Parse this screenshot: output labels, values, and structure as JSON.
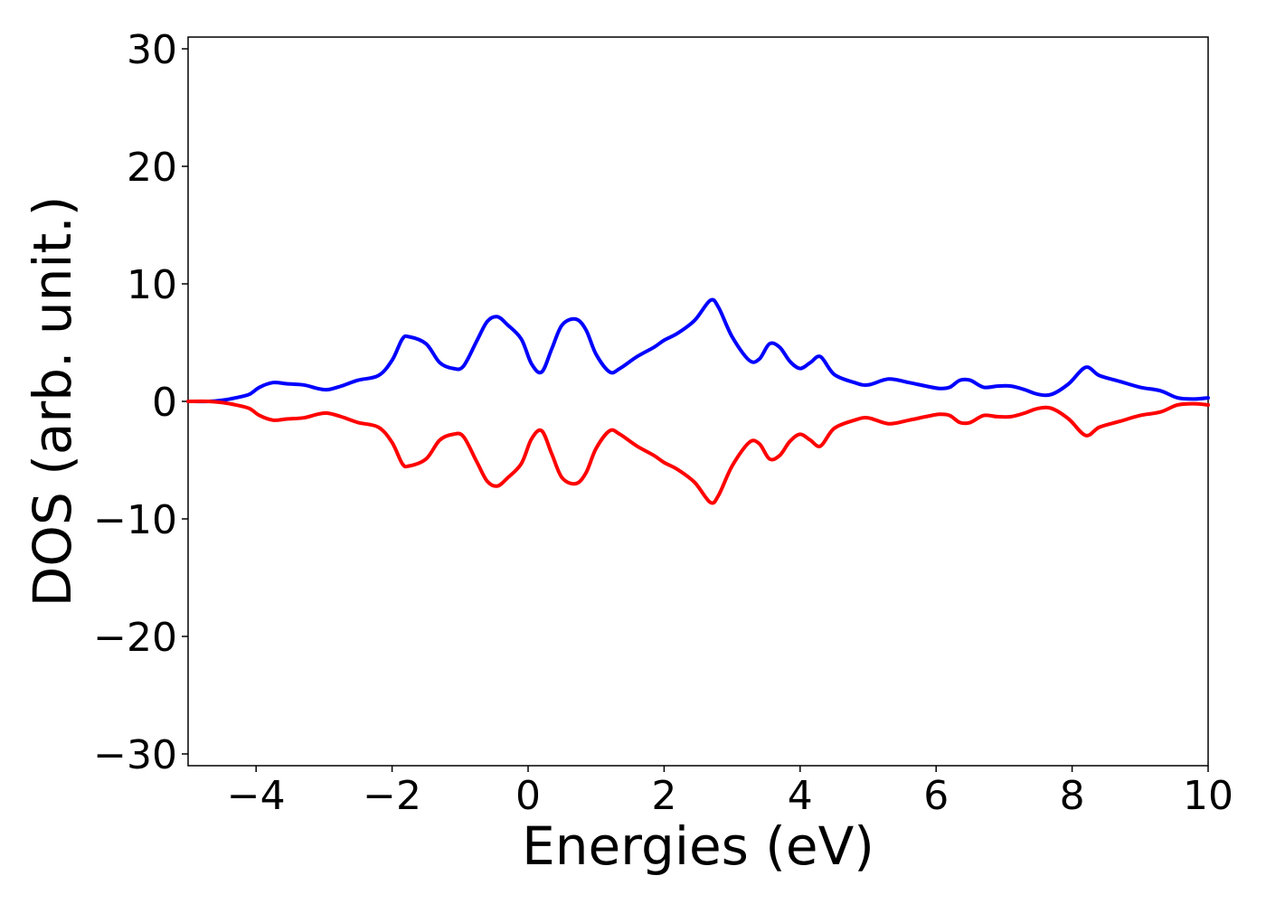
{
  "chart_data": {
    "type": "line",
    "title": "",
    "xlabel": "Energies (eV)",
    "ylabel": "DOS (arb. unit.)",
    "xlim": [
      -5,
      10
    ],
    "ylim": [
      -31,
      31
    ],
    "grid": false,
    "legend": "none",
    "xticks": [
      -4,
      -2,
      0,
      2,
      4,
      6,
      8,
      10
    ],
    "yticks": [
      -30,
      -20,
      -10,
      0,
      10,
      20,
      30
    ],
    "xtick_labels": [
      "−4",
      "−2",
      "0",
      "2",
      "4",
      "6",
      "8",
      "10"
    ],
    "ytick_labels": [
      "−30",
      "−20",
      "−10",
      "0",
      "10",
      "20",
      "30"
    ],
    "series": [
      {
        "color": "#0000ff",
        "x": [
          -5.0,
          -4.7,
          -4.5,
          -4.3,
          -4.1,
          -3.95,
          -3.75,
          -3.55,
          -3.3,
          -3.1,
          -2.95,
          -2.75,
          -2.5,
          -2.2,
          -2.0,
          -1.85,
          -1.75,
          -1.5,
          -1.3,
          -1.1,
          -0.95,
          -0.75,
          -0.6,
          -0.45,
          -0.3,
          -0.1,
          0.05,
          0.2,
          0.35,
          0.5,
          0.7,
          0.85,
          1.0,
          1.2,
          1.35,
          1.6,
          1.85,
          2.0,
          2.2,
          2.45,
          2.68,
          2.8,
          3.0,
          3.25,
          3.4,
          3.55,
          3.7,
          3.85,
          4.0,
          4.15,
          4.3,
          4.5,
          4.8,
          5.0,
          5.3,
          5.6,
          5.85,
          6.05,
          6.2,
          6.35,
          6.5,
          6.7,
          6.9,
          7.1,
          7.3,
          7.5,
          7.7,
          7.95,
          8.2,
          8.4,
          8.7,
          9.0,
          9.3,
          9.55,
          9.8,
          10.0
        ],
        "values": [
          0.0,
          0.0,
          0.1,
          0.3,
          0.6,
          1.2,
          1.6,
          1.5,
          1.4,
          1.1,
          1.0,
          1.3,
          1.8,
          2.2,
          3.5,
          5.3,
          5.5,
          4.9,
          3.3,
          2.8,
          3.0,
          5.2,
          6.8,
          7.2,
          6.5,
          5.3,
          3.2,
          2.5,
          4.5,
          6.5,
          7.0,
          6.1,
          4.0,
          2.5,
          2.8,
          3.8,
          4.6,
          5.2,
          5.8,
          6.9,
          8.6,
          8.0,
          5.5,
          3.5,
          3.6,
          4.9,
          4.6,
          3.4,
          2.8,
          3.3,
          3.8,
          2.3,
          1.6,
          1.4,
          1.9,
          1.6,
          1.3,
          1.1,
          1.2,
          1.8,
          1.8,
          1.2,
          1.3,
          1.3,
          1.0,
          0.6,
          0.6,
          1.5,
          2.9,
          2.2,
          1.7,
          1.2,
          0.9,
          0.3,
          0.2,
          0.3
        ]
      },
      {
        "color": "#ff0000",
        "x": [
          -5.0,
          -4.7,
          -4.5,
          -4.3,
          -4.1,
          -3.95,
          -3.75,
          -3.55,
          -3.3,
          -3.1,
          -2.95,
          -2.75,
          -2.5,
          -2.2,
          -2.0,
          -1.85,
          -1.75,
          -1.5,
          -1.3,
          -1.1,
          -0.95,
          -0.75,
          -0.6,
          -0.45,
          -0.3,
          -0.1,
          0.05,
          0.2,
          0.35,
          0.5,
          0.7,
          0.85,
          1.0,
          1.2,
          1.35,
          1.6,
          1.85,
          2.0,
          2.2,
          2.45,
          2.68,
          2.8,
          3.0,
          3.25,
          3.4,
          3.55,
          3.7,
          3.85,
          4.0,
          4.15,
          4.3,
          4.5,
          4.8,
          5.0,
          5.3,
          5.6,
          5.85,
          6.05,
          6.2,
          6.35,
          6.5,
          6.7,
          6.9,
          7.1,
          7.3,
          7.5,
          7.7,
          7.95,
          8.2,
          8.4,
          8.7,
          9.0,
          9.3,
          9.55,
          9.8,
          10.0
        ],
        "values": [
          0.0,
          0.0,
          -0.1,
          -0.3,
          -0.6,
          -1.2,
          -1.6,
          -1.5,
          -1.4,
          -1.1,
          -1.0,
          -1.3,
          -1.8,
          -2.2,
          -3.5,
          -5.3,
          -5.5,
          -4.9,
          -3.3,
          -2.8,
          -3.0,
          -5.2,
          -6.8,
          -7.2,
          -6.5,
          -5.3,
          -3.2,
          -2.5,
          -4.5,
          -6.5,
          -7.0,
          -6.1,
          -4.0,
          -2.5,
          -2.8,
          -3.8,
          -4.6,
          -5.2,
          -5.8,
          -6.9,
          -8.6,
          -8.0,
          -5.5,
          -3.5,
          -3.6,
          -4.9,
          -4.6,
          -3.4,
          -2.8,
          -3.3,
          -3.8,
          -2.3,
          -1.6,
          -1.4,
          -1.9,
          -1.6,
          -1.3,
          -1.1,
          -1.2,
          -1.8,
          -1.8,
          -1.2,
          -1.3,
          -1.3,
          -1.0,
          -0.6,
          -0.6,
          -1.5,
          -2.9,
          -2.2,
          -1.7,
          -1.2,
          -0.9,
          -0.3,
          -0.2,
          -0.3
        ]
      }
    ]
  }
}
